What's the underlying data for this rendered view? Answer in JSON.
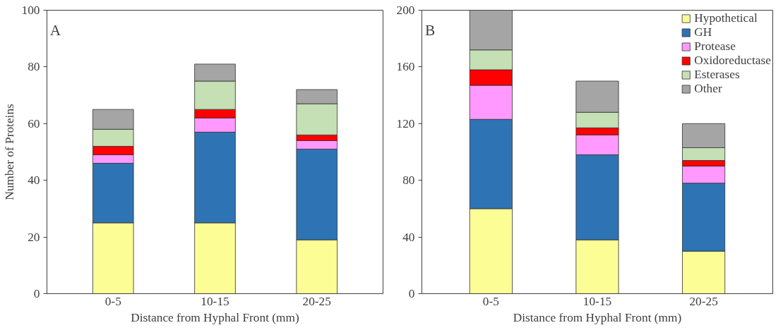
{
  "chart_data": [
    {
      "type": "bar",
      "stacked": true,
      "categories": [
        "0-5",
        "10-15",
        "20-25"
      ],
      "xlabel": "Distance from Hyphal Front (mm)",
      "ylabel": "Number of Proteins",
      "ylim": [
        0,
        100
      ],
      "yticks": [
        0,
        20,
        40,
        60,
        80,
        100
      ],
      "grid": false,
      "legend": false,
      "annotations": [
        "A"
      ],
      "series": [
        {
          "color": "#fdfd96",
          "values": [
            25,
            25,
            19
          ]
        },
        {
          "color": "#2e74b5",
          "values": [
            21,
            32,
            32
          ]
        },
        {
          "color": "#ff99ff",
          "values": [
            3,
            5,
            3
          ]
        },
        {
          "color": "#ff0000",
          "values": [
            3,
            3,
            2
          ]
        },
        {
          "color": "#c5e0b4",
          "values": [
            6,
            10,
            11
          ]
        },
        {
          "color": "#a5a5a5",
          "values": [
            7,
            6,
            5
          ]
        }
      ]
    },
    {
      "type": "bar",
      "stacked": true,
      "categories": [
        "0-5",
        "10-15",
        "20-25"
      ],
      "xlabel": "Distance from Hyphal Front (mm)",
      "ylim": [
        0,
        200
      ],
      "yticks": [
        0,
        40,
        80,
        120,
        160,
        200
      ],
      "grid": false,
      "legend": "top right",
      "annotations": [
        "B"
      ],
      "series": [
        {
          "name": "Hypothetical",
          "color": "#fdfd96",
          "values": [
            60,
            38,
            30
          ]
        },
        {
          "name": "GH",
          "color": "#2e74b5",
          "values": [
            63,
            60,
            48
          ]
        },
        {
          "name": "Protease",
          "color": "#ff99ff",
          "values": [
            24,
            14,
            12
          ]
        },
        {
          "name": "Oxidoreductase",
          "color": "#ff0000",
          "values": [
            11,
            5,
            4
          ]
        },
        {
          "name": "Esterases",
          "color": "#c5e0b4",
          "values": [
            14,
            11,
            9
          ]
        },
        {
          "name": "Other",
          "color": "#a5a5a5",
          "values": [
            28,
            22,
            17
          ]
        }
      ]
    }
  ]
}
